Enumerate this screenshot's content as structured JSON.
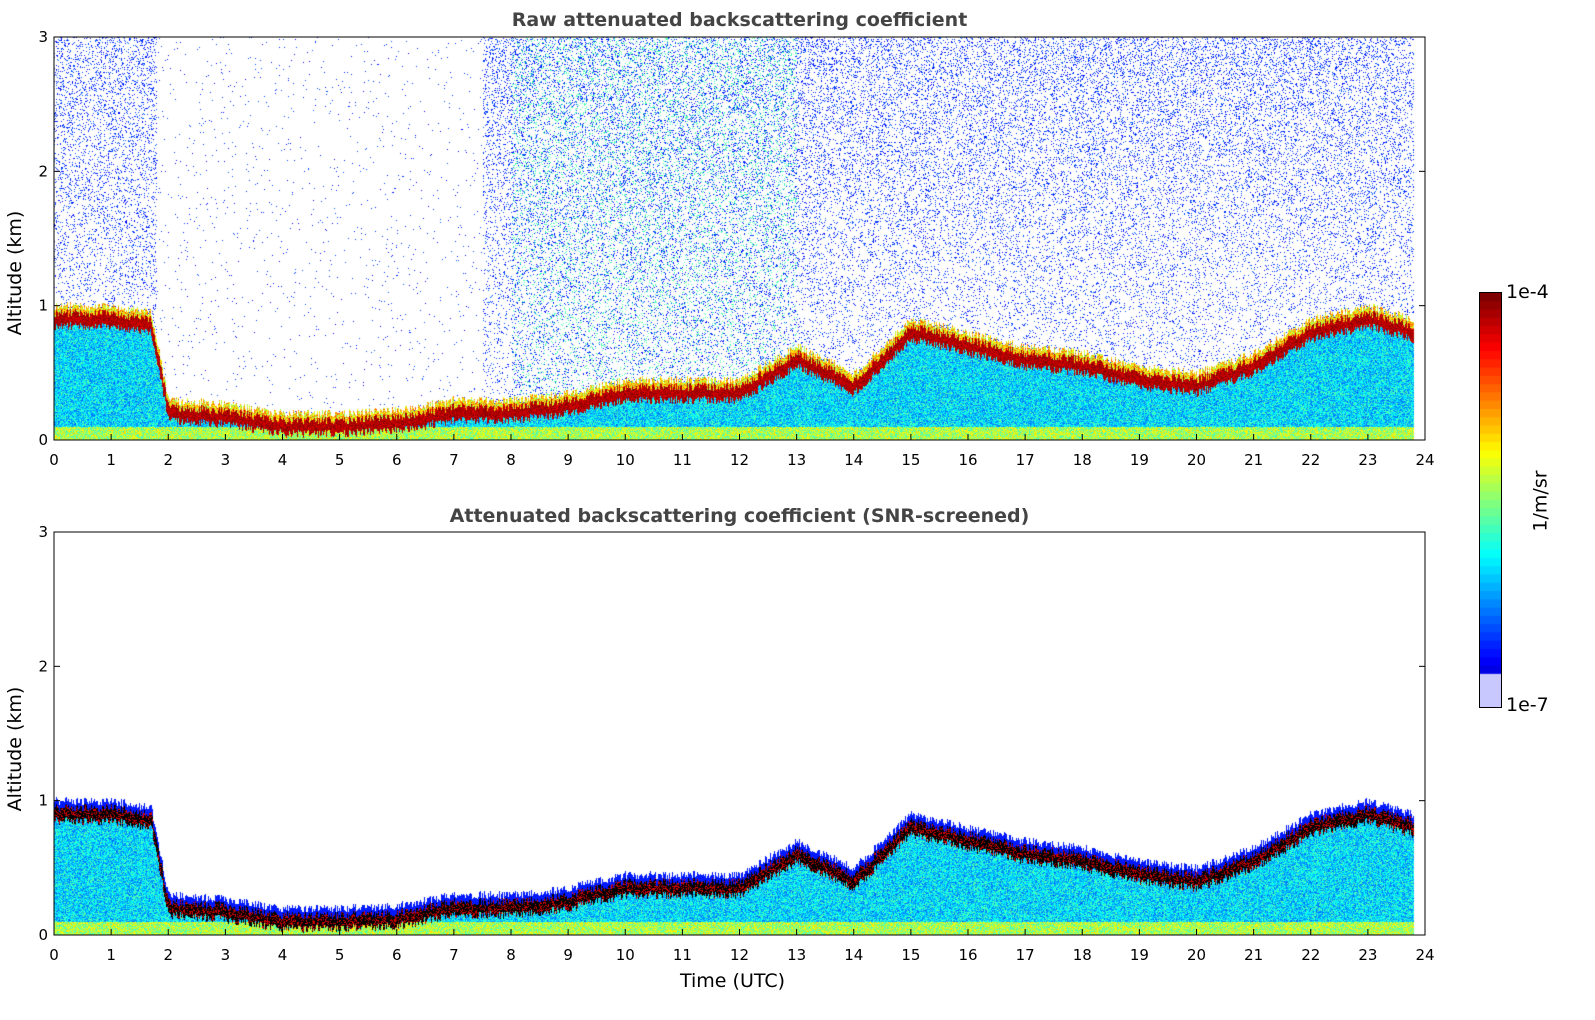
{
  "chart_data": [
    {
      "type": "heatmap",
      "title": "Raw attenuated backscattering coefficient",
      "xlabel": "",
      "ylabel": "Altitude (km)",
      "xlim": [
        0,
        24
      ],
      "ylim": [
        0,
        3
      ],
      "xticks": [
        0,
        1,
        2,
        3,
        4,
        5,
        6,
        7,
        8,
        9,
        10,
        11,
        12,
        13,
        14,
        15,
        16,
        17,
        18,
        19,
        20,
        21,
        22,
        23,
        24
      ],
      "yticks": [
        0,
        1,
        2,
        3
      ],
      "data_end_hour": 23.8,
      "layer_top_km": {
        "hours": [
          0,
          1,
          1.7,
          2,
          3,
          4,
          5,
          6,
          7,
          8,
          9,
          10,
          11,
          12,
          13,
          14,
          15,
          16,
          17,
          18,
          19,
          20,
          21,
          22,
          23,
          23.8
        ],
        "values": [
          0.95,
          0.95,
          0.9,
          0.25,
          0.22,
          0.15,
          0.15,
          0.17,
          0.25,
          0.25,
          0.3,
          0.4,
          0.4,
          0.4,
          0.65,
          0.45,
          0.85,
          0.75,
          0.65,
          0.6,
          0.5,
          0.45,
          0.6,
          0.85,
          0.95,
          0.85
        ]
      },
      "screened": false
    },
    {
      "type": "heatmap",
      "title": "Attenuated backscattering coefficient (SNR-screened)",
      "xlabel": "Time (UTC)",
      "ylabel": "Altitude (km)",
      "xlim": [
        0,
        24
      ],
      "ylim": [
        0,
        3
      ],
      "xticks": [
        0,
        1,
        2,
        3,
        4,
        5,
        6,
        7,
        8,
        9,
        10,
        11,
        12,
        13,
        14,
        15,
        16,
        17,
        18,
        19,
        20,
        21,
        22,
        23,
        24
      ],
      "yticks": [
        0,
        1,
        2,
        3
      ],
      "screened": true
    }
  ],
  "colorbar": {
    "label": "1/m/sr",
    "max_label": "1e-4",
    "min_label": "1e-7",
    "scale": "log"
  }
}
